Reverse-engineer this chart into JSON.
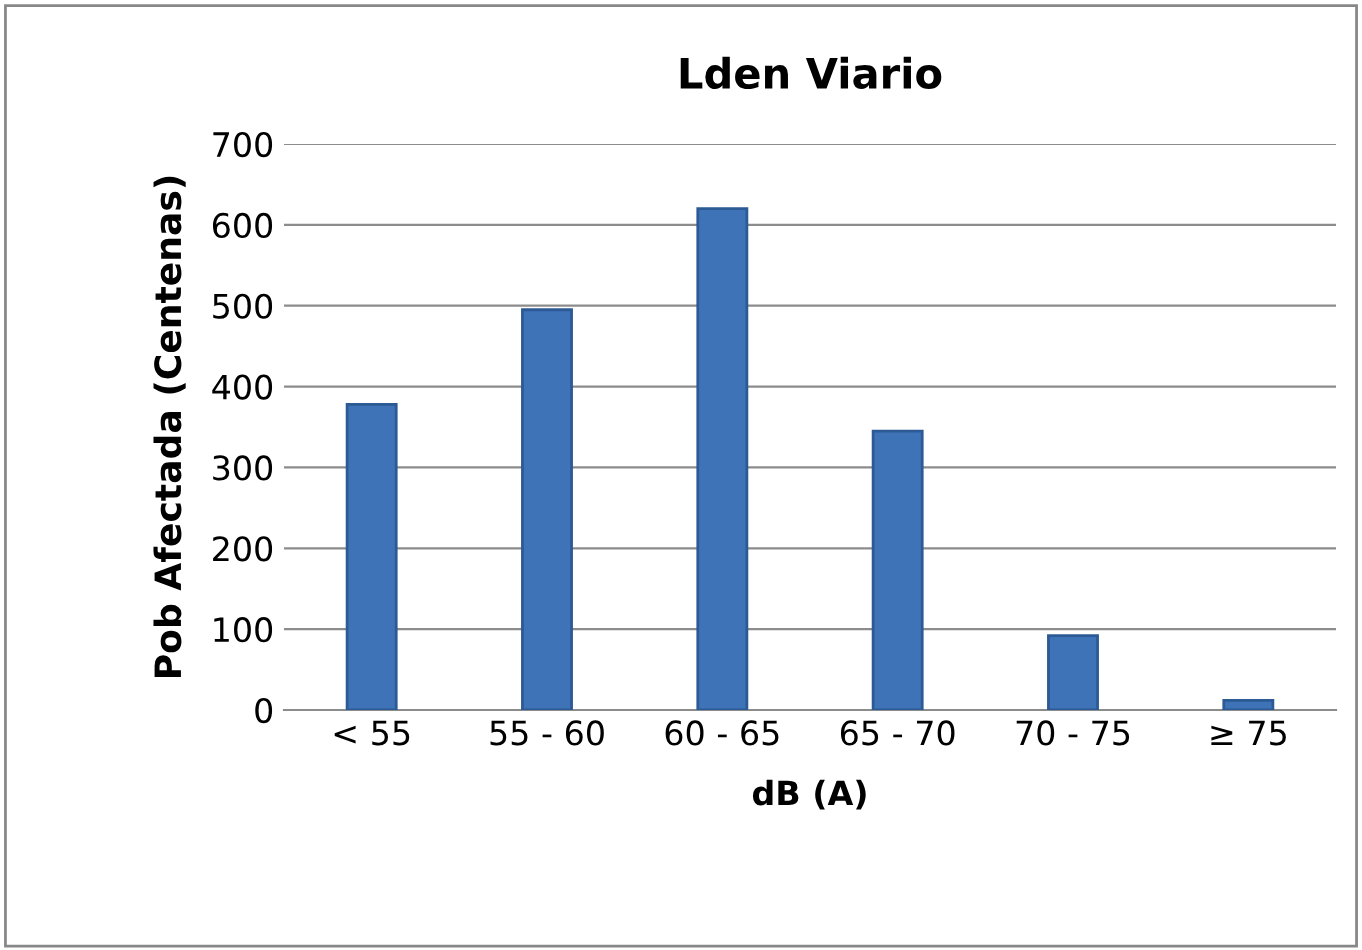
{
  "chart_data": {
    "type": "bar",
    "title": "Lden Viario",
    "xlabel": "dB (A)",
    "ylabel": "Pob Afectada (Centenas)",
    "categories": [
      "< 55",
      "55 - 60",
      "60 - 65",
      "65 - 70",
      "70 - 75",
      "≥ 75"
    ],
    "values": [
      378,
      495,
      620,
      345,
      92,
      12
    ],
    "color": "#3f73b8",
    "ylim": [
      0,
      700
    ],
    "yticks": [
      0,
      100,
      200,
      300,
      400,
      500,
      600,
      700
    ],
    "grid": "y"
  }
}
